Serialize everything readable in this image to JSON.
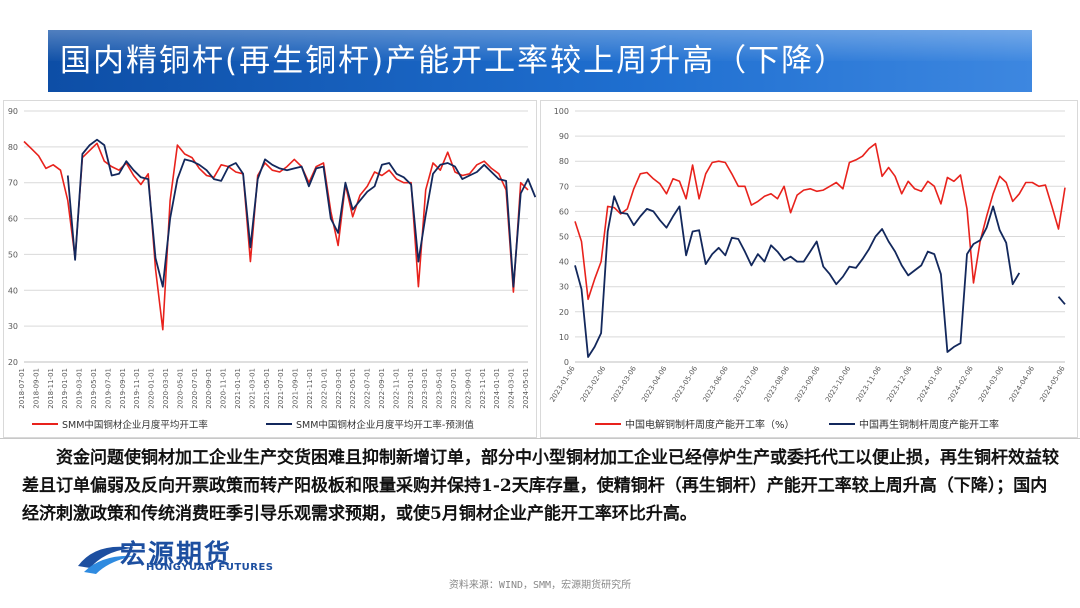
{
  "title": "国内精铜杆(再生铜杆)产能开工率较上周升高（下降）",
  "body_text": "资金问题使铜材加工企业生产交货困难且抑制新增订单，部分中小型铜材加工企业已经停炉生产或委托代工以便止损，再生铜杆效益较差且订单偏弱及反向开票政策而转产阳极板和限量采购并保持1-2天库存量，使精铜杆（再生铜杆）产能开工率较上周升高（下降）；国内经济刺激政策和传统消费旺季引导乐观需求预期，或使5月铜材企业产能开工率环比升高。",
  "logo": {
    "cn": "宏源期货",
    "en": "HONGYUAN FUTURES"
  },
  "source_note": "资料来源：WIND，SMM，宏源期货研究所",
  "colors": {
    "red": "#e8221c",
    "navy": "#13285c",
    "title_bg": "#1a5fbf",
    "grid": "#d9d9d9",
    "axis_text": "#595959"
  },
  "chart_data": [
    {
      "type": "line",
      "title": "",
      "ylim": [
        20,
        90
      ],
      "yticks": [
        20,
        30,
        40,
        50,
        60,
        70,
        80,
        90
      ],
      "grid": true,
      "legend_position": "bottom",
      "x_tick_labels": [
        "2018-07-01",
        "2018-09-01",
        "2018-11-01",
        "2019-01-01",
        "2019-03-01",
        "2019-05-01",
        "2019-07-01",
        "2019-09-01",
        "2019-11-01",
        "2020-01-01",
        "2020-03-01",
        "2020-05-01",
        "2020-07-01",
        "2020-09-01",
        "2020-11-01",
        "2021-01-01",
        "2021-03-01",
        "2021-05-01",
        "2021-07-01",
        "2021-09-01",
        "2021-11-01",
        "2022-01-01",
        "2022-03-01",
        "2022-05-01",
        "2022-07-01",
        "2022-09-01",
        "2022-11-01",
        "2023-01-01",
        "2023-03-01",
        "2023-05-01",
        "2023-07-01",
        "2023-09-01",
        "2023-11-01",
        "2024-01-01",
        "2024-03-01",
        "2024-05-01"
      ],
      "series": [
        {
          "name": "SMM中国铜材企业月度平均开工率",
          "color": "#e8221c",
          "values": [
            81.5,
            79.5,
            77.5,
            74,
            75,
            73.5,
            65,
            49,
            77,
            79,
            81,
            76,
            74.5,
            73.5,
            75.5,
            72,
            69.5,
            72.5,
            46,
            29,
            65,
            80.5,
            78,
            77,
            74,
            72,
            71.5,
            75,
            74.5,
            73,
            72.5,
            48,
            72,
            75.5,
            73.5,
            73,
            74.5,
            76.5,
            74.5,
            70,
            74.5,
            75.5,
            62,
            52.5,
            69.5,
            60.5,
            66.5,
            69,
            73,
            72,
            73.5,
            71,
            70,
            70,
            41,
            68,
            75.5,
            73.5,
            78.5,
            73,
            72,
            72.5,
            75,
            76,
            74,
            72.5,
            68,
            39.5,
            70,
            68
          ]
        },
        {
          "name": "SMM中国铜材企业月度平均开工率-预测值",
          "color": "#13285c",
          "values": [
            null,
            null,
            null,
            null,
            null,
            null,
            72,
            48.5,
            78,
            80.5,
            82,
            80.5,
            72,
            72.5,
            76,
            73.5,
            71.5,
            71,
            49,
            41,
            60,
            71,
            76.5,
            76,
            75,
            73.5,
            71,
            70.5,
            74.5,
            75.5,
            72.5,
            52,
            71,
            76.5,
            75,
            74,
            73.5,
            74,
            74.5,
            69,
            74,
            74.5,
            60,
            56,
            70,
            62.5,
            65,
            67.5,
            69,
            75,
            75.5,
            72.5,
            71.5,
            69.5,
            48,
            61,
            72.5,
            75,
            75.5,
            74.5,
            71,
            72,
            73,
            75,
            73,
            71,
            70.5,
            41,
            67,
            71,
            66
          ]
        }
      ]
    },
    {
      "type": "line",
      "title": "",
      "ylim": [
        0,
        100
      ],
      "yticks": [
        0,
        10,
        20,
        30,
        40,
        50,
        60,
        70,
        80,
        90,
        100
      ],
      "grid": true,
      "legend_position": "bottom",
      "x_tick_labels": [
        "2023-01-06",
        "2023-02-06",
        "2023-03-06",
        "2023-04-06",
        "2023-05-06",
        "2023-06-06",
        "2023-07-06",
        "2023-08-06",
        "2023-09-06",
        "2023-10-06",
        "2023-11-06",
        "2023-12-06",
        "2024-01-06",
        "2024-02-06",
        "2024-03-06",
        "2024-04-06",
        "2024-05-06"
      ],
      "series": [
        {
          "name": "中国电解铜制杆周度产能开工率（%）",
          "color": "#e8221c",
          "values": [
            56,
            48,
            25,
            33,
            40,
            62,
            61.5,
            59,
            61,
            69,
            75,
            75.5,
            73,
            71,
            67,
            73,
            72,
            65,
            78.5,
            65,
            75,
            79.5,
            80,
            79.5,
            75,
            70,
            70,
            62.5,
            64,
            66,
            67,
            65,
            70,
            59.5,
            66.5,
            68.5,
            69,
            68,
            68.5,
            70,
            71.5,
            69,
            79.5,
            80.5,
            82,
            85,
            87,
            74,
            77.5,
            74,
            67,
            72,
            69,
            68,
            72,
            70,
            63,
            73.5,
            72,
            74.5,
            61,
            31.5,
            48,
            58,
            67,
            74,
            71.5,
            64,
            67,
            71.5,
            71.5,
            70,
            70.5,
            62,
            53,
            69.5
          ]
        },
        {
          "name": "中国再生铜制杆周度产能开工率",
          "color": "#13285c",
          "values": [
            38.5,
            29,
            2,
            6,
            11.5,
            52,
            66,
            59.5,
            59,
            54.5,
            58,
            61,
            60,
            56.5,
            53.5,
            58,
            62,
            42.5,
            52,
            52.5,
            39,
            43,
            45.5,
            42.5,
            49.5,
            49,
            44,
            38.5,
            43,
            40,
            46.5,
            44,
            40.5,
            42,
            40,
            40,
            44,
            48,
            38,
            35,
            31,
            34,
            38,
            37.5,
            41,
            45,
            50,
            53,
            48,
            44,
            38.5,
            34.5,
            36.5,
            38.5,
            44,
            43,
            35,
            4,
            6,
            7.5,
            43,
            47,
            48.5,
            53.5,
            62,
            52.5,
            47.5,
            31,
            35.5,
            null,
            null,
            null,
            null,
            null,
            26,
            23
          ]
        }
      ]
    }
  ]
}
